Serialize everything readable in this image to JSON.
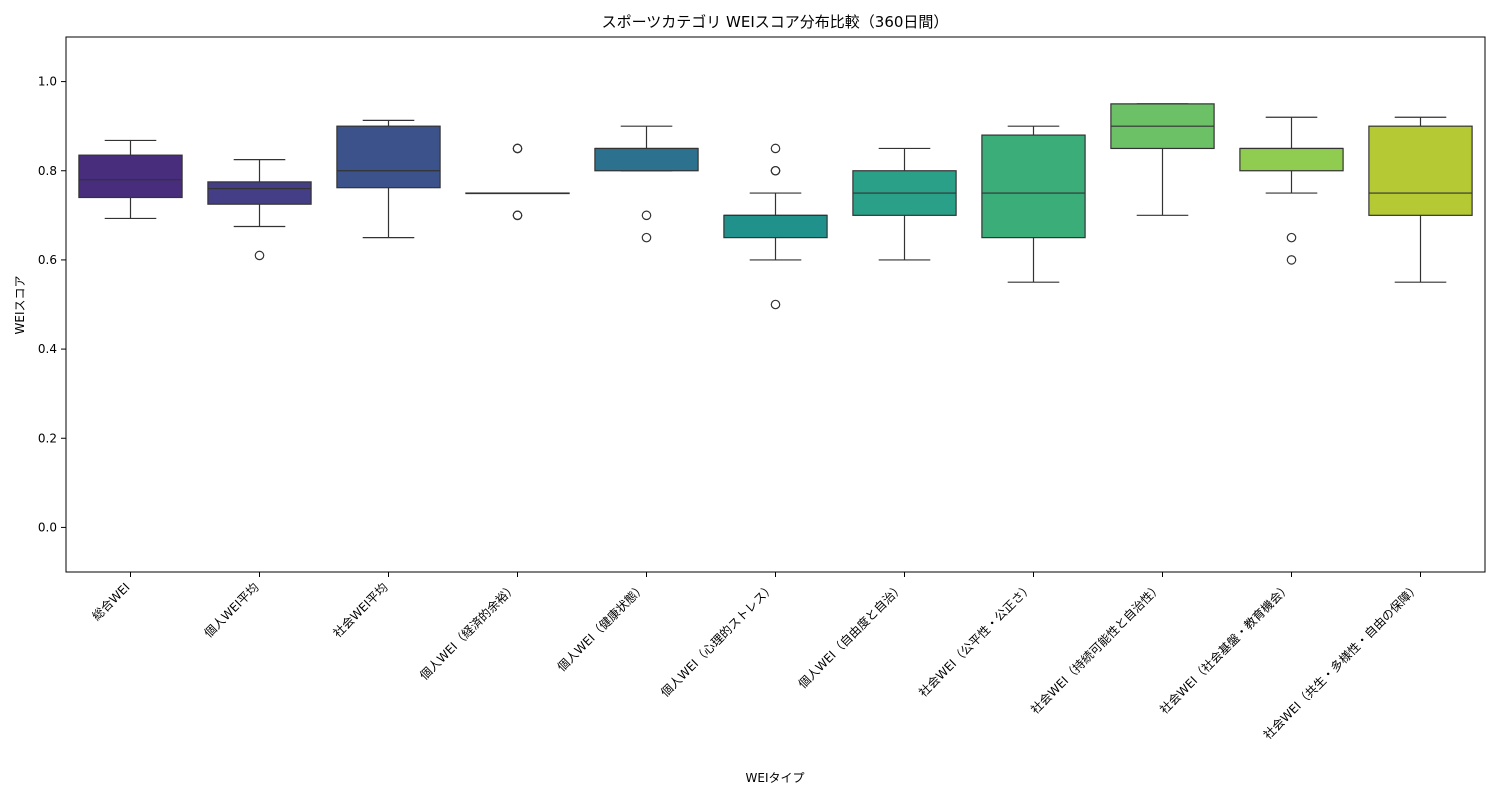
{
  "chart_data": {
    "type": "box",
    "title": "スポーツカテゴリ WEIスコア分布比較（360日間）",
    "xlabel": "WEIタイプ",
    "ylabel": "WEIスコア",
    "ylim": [
      -0.1,
      1.1
    ],
    "yticks": [
      "0.0",
      "0.2",
      "0.4",
      "0.6",
      "0.8",
      "1.0"
    ],
    "grid": false,
    "legend": "none",
    "categories": [
      "総合WEI",
      "個人WEI平均",
      "社会WEI平均",
      "個人WEI（経済的余裕）",
      "個人WEI（健康状態）",
      "個人WEI（心理的ストレス）",
      "個人WEI（自由度と自治）",
      "社会WEI（公平性・公正さ）",
      "社会WEI（持続可能性と自治性）",
      "社会WEI（社会基盤・教育機会）",
      "社会WEI（共生・多様性・自由の保障）"
    ],
    "boxes": [
      {
        "q1": 0.74,
        "median": 0.78,
        "q3": 0.835,
        "whislo": 0.693,
        "whishi": 0.868,
        "fliers": [],
        "color": "#472d7b"
      },
      {
        "q1": 0.725,
        "median": 0.76,
        "q3": 0.775,
        "whislo": 0.675,
        "whishi": 0.825,
        "fliers": [
          0.61
        ],
        "color": "#433e85"
      },
      {
        "q1": 0.762,
        "median": 0.8,
        "q3": 0.9,
        "whislo": 0.65,
        "whishi": 0.913,
        "fliers": [],
        "color": "#3b528b"
      },
      {
        "q1": 0.75,
        "median": 0.75,
        "q3": 0.75,
        "whislo": 0.75,
        "whishi": 0.75,
        "fliers": [
          0.85,
          0.85,
          0.7,
          0.7
        ],
        "color": "#31688e"
      },
      {
        "q1": 0.8,
        "median": 0.85,
        "q3": 0.85,
        "whislo": 0.8,
        "whishi": 0.9,
        "fliers": [
          0.7,
          0.65
        ],
        "color": "#2c728e"
      },
      {
        "q1": 0.65,
        "median": 0.7,
        "q3": 0.7,
        "whislo": 0.6,
        "whishi": 0.75,
        "fliers": [
          0.85,
          0.8,
          0.8,
          0.5
        ],
        "color": "#21918c"
      },
      {
        "q1": 0.7,
        "median": 0.75,
        "q3": 0.8,
        "whislo": 0.6,
        "whishi": 0.85,
        "fliers": [],
        "color": "#29a087"
      },
      {
        "q1": 0.65,
        "median": 0.75,
        "q3": 0.88,
        "whislo": 0.55,
        "whishi": 0.9,
        "fliers": [],
        "color": "#3bad79"
      },
      {
        "q1": 0.85,
        "median": 0.9,
        "q3": 0.95,
        "whislo": 0.7,
        "whishi": 0.95,
        "fliers": [],
        "color": "#6cc166"
      },
      {
        "q1": 0.8,
        "median": 0.85,
        "q3": 0.85,
        "whislo": 0.75,
        "whishi": 0.92,
        "fliers": [
          0.65,
          0.6
        ],
        "color": "#8fcc50"
      },
      {
        "q1": 0.7,
        "median": 0.75,
        "q3": 0.9,
        "whislo": 0.55,
        "whishi": 0.92,
        "fliers": [],
        "color": "#b5c934"
      }
    ]
  }
}
